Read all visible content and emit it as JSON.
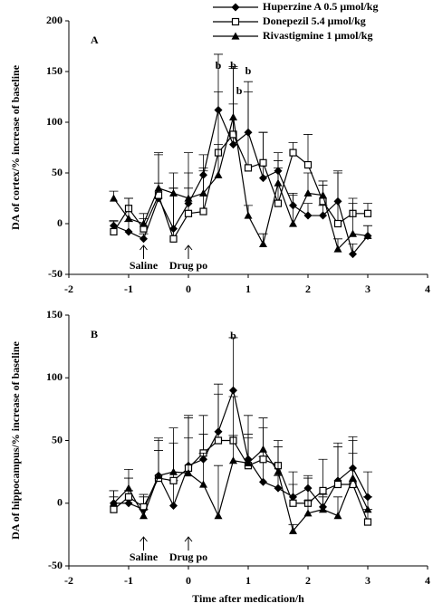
{
  "chart_data": [
    {
      "type": "line",
      "label": "A",
      "y_label": "DA of cortex/% increase of baseline",
      "legend": true,
      "x": [
        -1.25,
        -1,
        -0.75,
        -0.5,
        -0.25,
        0,
        0.25,
        0.5,
        0.75,
        1,
        1.25,
        1.5,
        1.75,
        2,
        2.25,
        2.5,
        2.75,
        3
      ],
      "xlim": [
        -2,
        4
      ],
      "xticks": [
        -2,
        -1,
        0,
        1,
        2,
        3,
        4
      ],
      "ylim": [
        -50,
        200
      ],
      "yticks": [
        -50,
        0,
        50,
        100,
        150,
        200
      ],
      "series": [
        {
          "name": "Huperzine A  0.5 μmol/kg",
          "color": "#000000",
          "marker": "diamond",
          "values": [
            -2,
            -8,
            -15,
            25,
            -5,
            20,
            48,
            112,
            78,
            90,
            45,
            52,
            18,
            8,
            8,
            22,
            -30,
            -12
          ],
          "errors": [
            5,
            10,
            5,
            15,
            40,
            30,
            20,
            55,
            40,
            50,
            45,
            10,
            10,
            12,
            10,
            30,
            10,
            10
          ]
        },
        {
          "name": "Donepezil      5.4 μmol/kg",
          "color": "#000000",
          "marker": "square",
          "values": [
            -8,
            15,
            -5,
            28,
            -15,
            10,
            12,
            70,
            88,
            55,
            60,
            20,
            70,
            58,
            22,
            0,
            10,
            10
          ],
          "errors": [
            10,
            10,
            10,
            40,
            50,
            60,
            40,
            60,
            65,
            75,
            30,
            35,
            10,
            30,
            20,
            50,
            15,
            10
          ]
        },
        {
          "name": "Rivastigmine 1 μmol/kg",
          "color": "#000000",
          "marker": "triangle",
          "values": [
            25,
            5,
            0,
            35,
            30,
            25,
            30,
            48,
            105,
            8,
            -20,
            40,
            0,
            30,
            28,
            -25,
            -10,
            -12
          ],
          "errors": [
            7,
            20,
            10,
            35,
            20,
            10,
            25,
            30,
            50,
            10,
            10,
            30,
            30,
            20,
            10,
            10,
            30,
            10
          ]
        }
      ],
      "annotations": [
        {
          "text": "b",
          "x": 0.5,
          "y": 155
        },
        {
          "text": "b",
          "x": 0.75,
          "y": 155
        },
        {
          "text": "b",
          "x": 0.85,
          "y": 130
        },
        {
          "text": "b",
          "x": 1,
          "y": 150
        }
      ],
      "arrows": [
        {
          "text": "Saline",
          "x": -0.75
        },
        {
          "text": "Drug po",
          "x": 0
        }
      ]
    },
    {
      "type": "line",
      "label": "B",
      "y_label": "DA of hippocampus/% increase of baseline",
      "x_label": "Time after medication/h",
      "x": [
        -1.25,
        -1,
        -0.75,
        -0.5,
        -0.25,
        0,
        0.25,
        0.5,
        0.75,
        1,
        1.25,
        1.5,
        1.75,
        2,
        2.25,
        2.5,
        2.75,
        3
      ],
      "xlim": [
        -2,
        4
      ],
      "xticks": [
        -2,
        -1,
        0,
        1,
        2,
        3,
        4
      ],
      "ylim": [
        -50,
        150
      ],
      "yticks": [
        -50,
        0,
        50,
        100,
        150
      ],
      "series": [
        {
          "name": "Huperzine A  0.5 μmol/kg",
          "color": "#000000",
          "marker": "diamond",
          "values": [
            0,
            0,
            -5,
            22,
            -2,
            30,
            35,
            57,
            90,
            35,
            17,
            12,
            5,
            12,
            -3,
            18,
            28,
            5
          ],
          "errors": [
            10,
            10,
            10,
            20,
            20,
            40,
            20,
            30,
            42,
            20,
            20,
            10,
            10,
            10,
            10,
            30,
            25,
            20
          ]
        },
        {
          "name": "Donepezil      5.4 μmol/kg",
          "color": "#000000",
          "marker": "square",
          "values": [
            -5,
            5,
            -3,
            20,
            18,
            28,
            40,
            50,
            50,
            30,
            35,
            30,
            0,
            0,
            10,
            15,
            15,
            -15
          ],
          "errors": [
            10,
            15,
            10,
            30,
            30,
            40,
            30,
            45,
            35,
            40,
            25,
            20,
            25,
            20,
            25,
            30,
            25,
            10
          ]
        },
        {
          "name": "Rivastigmine 1 μmol/kg",
          "color": "#000000",
          "marker": "triangle",
          "values": [
            0,
            12,
            -10,
            22,
            25,
            24,
            15,
            -10,
            34,
            32,
            43,
            25,
            -22,
            -8,
            -5,
            -10,
            20,
            -5
          ],
          "errors": [
            10,
            15,
            5,
            30,
            35,
            28,
            25,
            40,
            20,
            20,
            25,
            20,
            5,
            10,
            10,
            15,
            30,
            10
          ]
        }
      ],
      "annotations": [
        {
          "text": "b",
          "x": 0.75,
          "y": 133
        }
      ],
      "arrows": [
        {
          "text": "Saline",
          "x": -0.75
        },
        {
          "text": "Drug po",
          "x": 0
        }
      ]
    }
  ]
}
